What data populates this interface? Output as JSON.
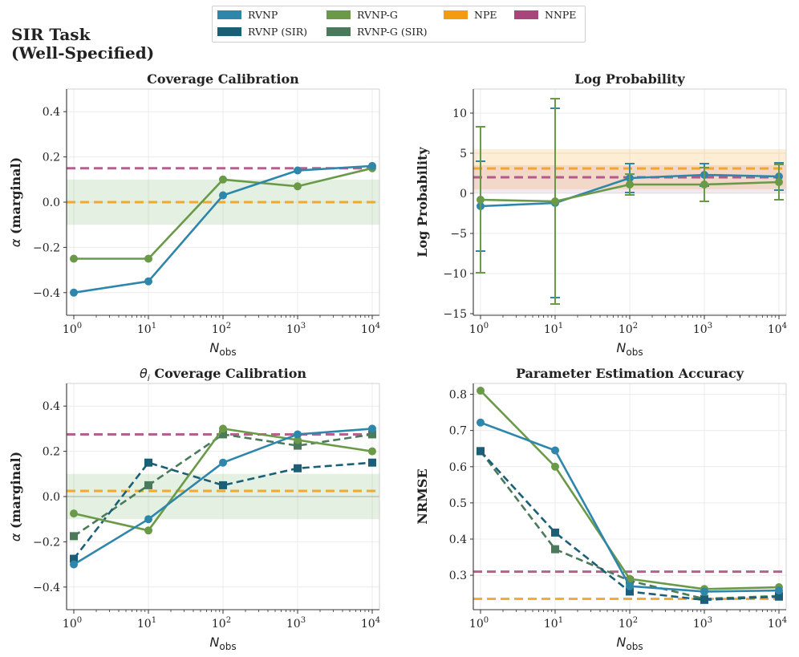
{
  "suptitle_lines": [
    "SIR Task",
    "(Well-Specified)"
  ],
  "legend": [
    {
      "label": "RVNP",
      "color": "#2e86ab"
    },
    {
      "label": "RVNP (SIR)",
      "color": "#1b5e77"
    },
    {
      "label": "RVNP-G",
      "color": "#6a9a48"
    },
    {
      "label": "RVNP-G (SIR)",
      "color": "#4a7a5a"
    },
    {
      "label": "NPE",
      "color": "#f39c12"
    },
    {
      "label": "NNPE",
      "color": "#a8457a"
    }
  ],
  "colors": {
    "rvnp": "#2e86ab",
    "rvnp_sir": "#1b5e77",
    "rvnpg": "#6a9a48",
    "rvnpg_sir": "#4a7a5a",
    "npe": "#f39c12",
    "nnpe": "#a8457a",
    "band_green": "#6aaa5a",
    "grid": "#ebebeb"
  },
  "chart_data": [
    {
      "id": "coverage",
      "type": "line",
      "title": "Coverage Calibration",
      "xlabel": "N_obs",
      "ylabel": "α (marginal)",
      "xscale": "log",
      "x": [
        1,
        10,
        100,
        1000,
        10000
      ],
      "xticklabels": [
        [
          "10",
          "0"
        ],
        [
          "10",
          "1"
        ],
        [
          "10",
          "2"
        ],
        [
          "10",
          "3"
        ],
        [
          "10",
          "4"
        ]
      ],
      "xlim": [
        0.8,
        12500
      ],
      "ylim": [
        -0.5,
        0.5
      ],
      "yticks": [
        -0.4,
        -0.2,
        0.0,
        0.2,
        0.4
      ],
      "yticklabels": [
        "−0.4",
        "−0.2",
        "0.0",
        "0.2",
        "0.4"
      ],
      "bands": [
        {
          "y0": -0.1,
          "y1": 0.1,
          "color": "band_green",
          "opacity": 0.18
        }
      ],
      "hlines": [
        {
          "name": "NNPE",
          "y": 0.15,
          "color": "nnpe"
        },
        {
          "name": "NPE",
          "y": 0.0,
          "color": "npe"
        }
      ],
      "series": [
        {
          "name": "RVNP-G",
          "values": [
            -0.25,
            -0.25,
            0.1,
            0.07,
            0.15
          ],
          "color": "rvnpg",
          "marker": "circle",
          "dash": false
        },
        {
          "name": "RVNP",
          "values": [
            -0.4,
            -0.35,
            0.03,
            0.14,
            0.16
          ],
          "color": "rvnp",
          "marker": "circle",
          "dash": false
        }
      ]
    },
    {
      "id": "logprob",
      "type": "line",
      "title": "Log Probability",
      "xlabel": "N_obs",
      "ylabel": "Log Probability",
      "xscale": "log",
      "x": [
        1,
        10,
        100,
        1000,
        10000
      ],
      "xticklabels": [
        [
          "10",
          "0"
        ],
        [
          "10",
          "1"
        ],
        [
          "10",
          "2"
        ],
        [
          "10",
          "3"
        ],
        [
          "10",
          "4"
        ]
      ],
      "xlim": [
        0.8,
        12500
      ],
      "ylim": [
        -15.2,
        13
      ],
      "yticks": [
        -15,
        -10,
        -5,
        0,
        5,
        10
      ],
      "yticklabels": [
        "−15",
        "−10",
        "−5",
        "0",
        "5",
        "10"
      ],
      "bands": [
        {
          "y0": 0.5,
          "y1": 5.5,
          "color": "npe",
          "opacity": 0.18
        },
        {
          "y0": 0.0,
          "y1": 3.5,
          "color": "nnpe",
          "opacity": 0.12
        }
      ],
      "hlines": [
        {
          "name": "NPE",
          "y": 3.1,
          "color": "npe"
        },
        {
          "name": "NNPE",
          "y": 2.0,
          "color": "nnpe"
        }
      ],
      "series": [
        {
          "name": "RVNP",
          "values": [
            -1.6,
            -1.2,
            1.9,
            2.3,
            2.1
          ],
          "err": [
            5.6,
            11.8,
            1.8,
            1.4,
            1.7
          ],
          "color": "rvnp",
          "marker": "circle",
          "dash": false
        },
        {
          "name": "RVNP-G",
          "values": [
            -0.8,
            -1.0,
            1.1,
            1.1,
            1.4
          ],
          "err": [
            9.1,
            12.8,
            1.3,
            2.1,
            2.2
          ],
          "color": "rvnpg",
          "marker": "circle",
          "dash": false
        }
      ]
    },
    {
      "id": "theta_coverage",
      "type": "line",
      "title": "θ_i Coverage Calibration",
      "xlabel": "N_obs",
      "ylabel": "α (marginal)",
      "xscale": "log",
      "x": [
        1,
        10,
        100,
        1000,
        10000
      ],
      "xticklabels": [
        [
          "10",
          "0"
        ],
        [
          "10",
          "1"
        ],
        [
          "10",
          "2"
        ],
        [
          "10",
          "3"
        ],
        [
          "10",
          "4"
        ]
      ],
      "xlim": [
        0.8,
        12500
      ],
      "ylim": [
        -0.5,
        0.5
      ],
      "yticks": [
        -0.4,
        -0.2,
        0.0,
        0.2,
        0.4
      ],
      "yticklabels": [
        "−0.4",
        "−0.2",
        "0.0",
        "0.2",
        "0.4"
      ],
      "bands": [
        {
          "y0": -0.1,
          "y1": 0.1,
          "color": "band_green",
          "opacity": 0.18
        }
      ],
      "zero_line": true,
      "hlines": [
        {
          "name": "NNPE",
          "y": 0.275,
          "color": "nnpe"
        },
        {
          "name": "NPE",
          "y": 0.025,
          "color": "npe"
        }
      ],
      "series": [
        {
          "name": "RVNP-G (SIR)",
          "values": [
            -0.175,
            0.05,
            0.275,
            0.225,
            0.275
          ],
          "color": "rvnpg_sir",
          "marker": "square",
          "dash": true
        },
        {
          "name": "RVNP (SIR)",
          "values": [
            -0.275,
            0.15,
            0.05,
            0.125,
            0.15
          ],
          "color": "rvnp_sir",
          "marker": "square",
          "dash": true
        },
        {
          "name": "RVNP-G",
          "values": [
            -0.075,
            -0.15,
            0.3,
            0.25,
            0.2
          ],
          "color": "rvnpg",
          "marker": "circle",
          "dash": false
        },
        {
          "name": "RVNP",
          "values": [
            -0.3,
            -0.1,
            0.15,
            0.275,
            0.3
          ],
          "color": "rvnp",
          "marker": "circle",
          "dash": false
        }
      ]
    },
    {
      "id": "nrmse",
      "type": "line",
      "title": "Parameter Estimation Accuracy",
      "xlabel": "N_obs",
      "ylabel": "NRMSE",
      "xscale": "log",
      "x": [
        1,
        10,
        100,
        1000,
        10000
      ],
      "xticklabels": [
        [
          "10",
          "0"
        ],
        [
          "10",
          "1"
        ],
        [
          "10",
          "2"
        ],
        [
          "10",
          "3"
        ],
        [
          "10",
          "4"
        ]
      ],
      "xlim": [
        0.8,
        12500
      ],
      "ylim": [
        0.205,
        0.83
      ],
      "yticks": [
        0.3,
        0.4,
        0.5,
        0.6,
        0.7,
        0.8
      ],
      "yticklabels": [
        "0.3",
        "0.4",
        "0.5",
        "0.6",
        "0.7",
        "0.8"
      ],
      "bands": [],
      "hlines": [
        {
          "name": "NNPE",
          "y": 0.31,
          "color": "nnpe"
        },
        {
          "name": "NPE",
          "y": 0.235,
          "color": "npe"
        }
      ],
      "series": [
        {
          "name": "RVNP-G (SIR)",
          "values": [
            0.643,
            0.372,
            0.285,
            0.235,
            0.243
          ],
          "color": "rvnpg_sir",
          "marker": "square",
          "dash": true
        },
        {
          "name": "RVNP (SIR)",
          "values": [
            0.643,
            0.418,
            0.255,
            0.232,
            0.241
          ],
          "color": "rvnp_sir",
          "marker": "square",
          "dash": true
        },
        {
          "name": "RVNP-G",
          "values": [
            0.81,
            0.6,
            0.29,
            0.262,
            0.267
          ],
          "color": "rvnpg",
          "marker": "circle",
          "dash": false
        },
        {
          "name": "RVNP",
          "values": [
            0.722,
            0.645,
            0.27,
            0.255,
            0.258
          ],
          "color": "rvnp",
          "marker": "circle",
          "dash": false
        }
      ]
    }
  ]
}
